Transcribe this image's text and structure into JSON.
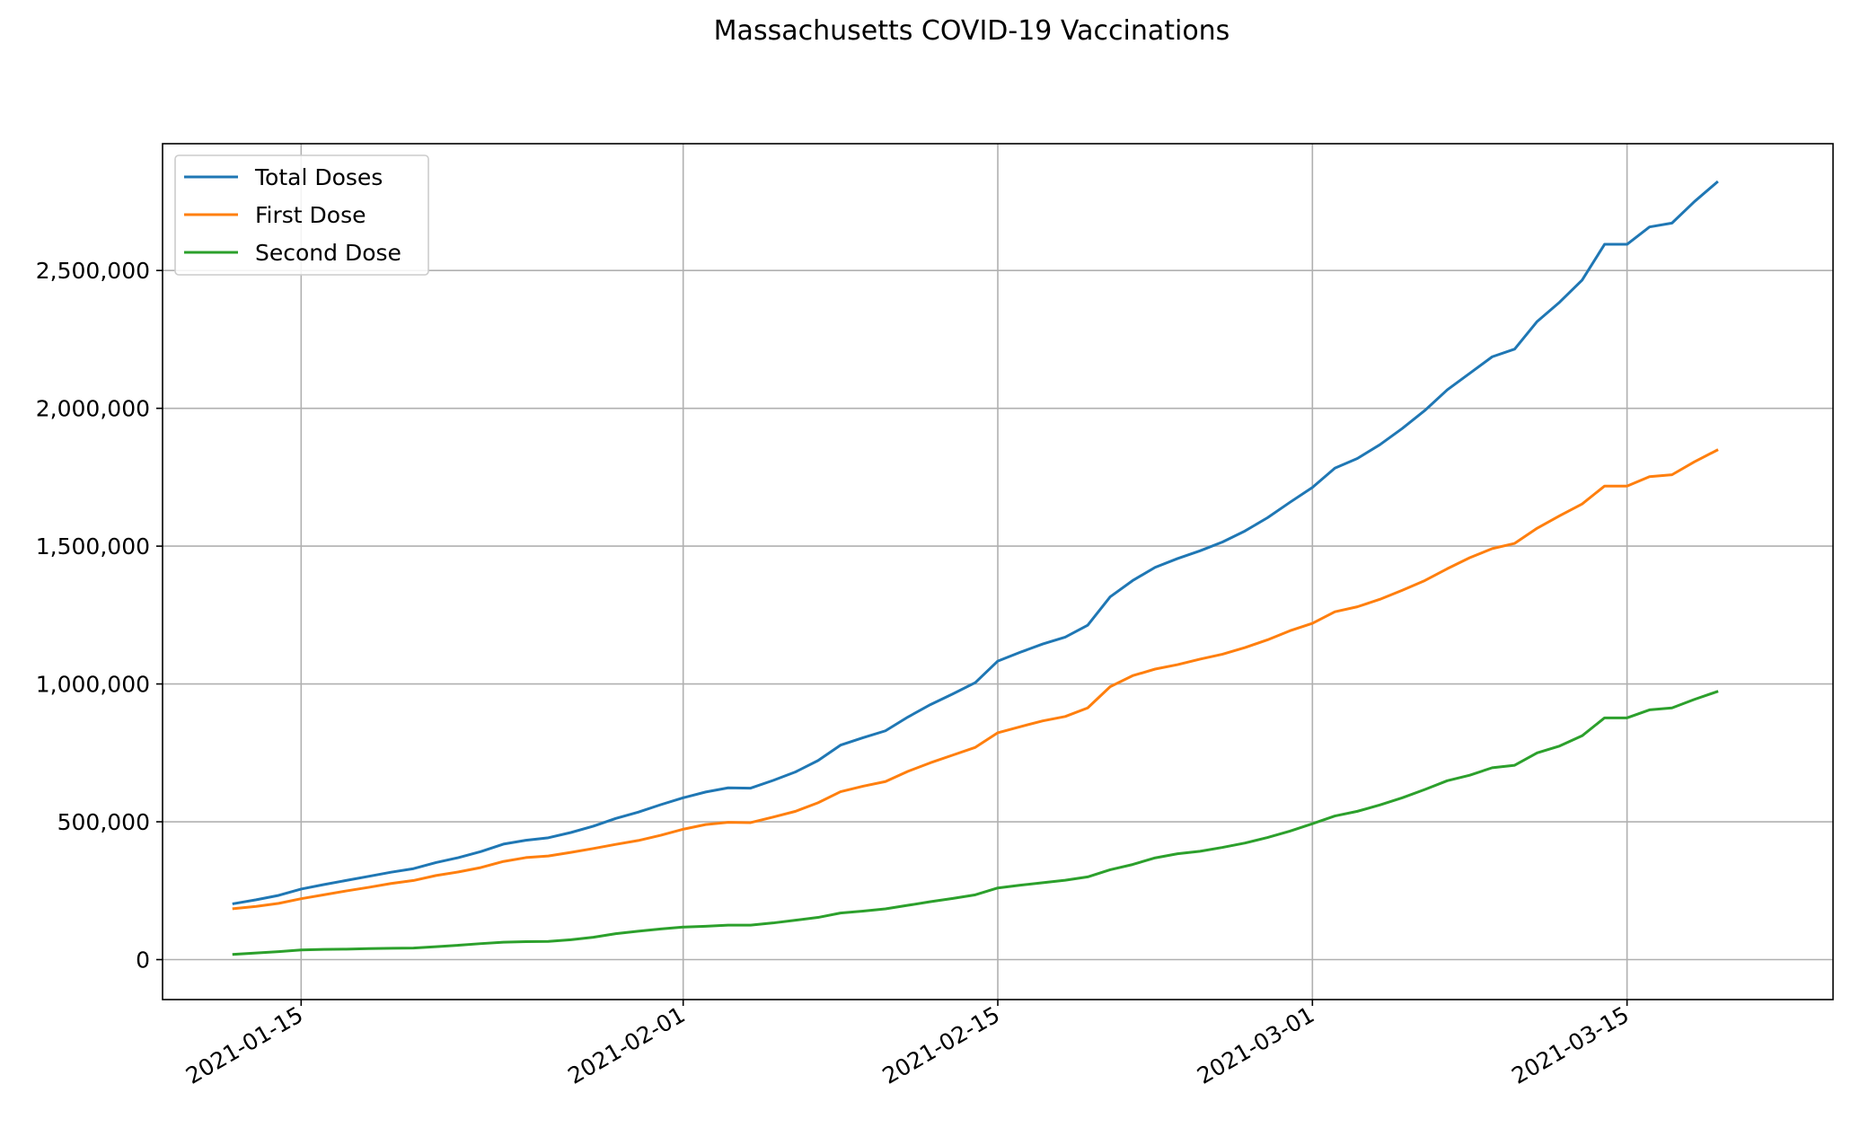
{
  "chart_data": {
    "type": "line",
    "title": "Massachusetts COVID-19 Vaccinations",
    "xlabel": "",
    "ylabel": "",
    "x_start": "2021-01-12",
    "x_end": "2021-03-18",
    "xlim": [
      "2021-01-08 20:00",
      "2021-03-24 04:00"
    ],
    "ylim": [
      -145000,
      2960000
    ],
    "grid": true,
    "legend_position": "top-left",
    "x_ticks": [
      {
        "date": "2021-01-15",
        "label": "2021-01-15"
      },
      {
        "date": "2021-02-01",
        "label": "2021-02-01"
      },
      {
        "date": "2021-02-15",
        "label": "2021-02-15"
      },
      {
        "date": "2021-03-01",
        "label": "2021-03-01"
      },
      {
        "date": "2021-03-15",
        "label": "2021-03-15"
      }
    ],
    "y_ticks": [
      {
        "value": 0,
        "label": "0"
      },
      {
        "value": 500000,
        "label": "500,000"
      },
      {
        "value": 1000000,
        "label": "1,000,000"
      },
      {
        "value": 1500000,
        "label": "1,500,000"
      },
      {
        "value": 2000000,
        "label": "2,000,000"
      },
      {
        "value": 2500000,
        "label": "2,500,000"
      }
    ],
    "series": [
      {
        "name": "Total Doses",
        "color": "#1f77b4",
        "values": [
          203000,
          217000,
          233000,
          256000,
          272000,
          287000,
          302000,
          317000,
          330000,
          352000,
          370000,
          392000,
          419000,
          433000,
          442000,
          461000,
          484000,
          512000,
          535000,
          562000,
          587000,
          608000,
          623000,
          622000,
          650000,
          681000,
          722000,
          778000,
          805000,
          830000,
          880000,
          925000,
          964000,
          1005000,
          1083000,
          1115000,
          1145000,
          1170000,
          1213000,
          1316000,
          1375000,
          1423000,
          1455000,
          1483000,
          1515000,
          1555000,
          1603000,
          1659000,
          1713000,
          1783000,
          1818000,
          1868000,
          1927000,
          1992000,
          2067000,
          2127000,
          2187000,
          2215000,
          2315000,
          2385000,
          2465000,
          2595000,
          2595000,
          2658000,
          2672000,
          2750000,
          2820000
        ]
      },
      {
        "name": "First Dose",
        "color": "#ff7f0e",
        "values": [
          185000,
          193000,
          204000,
          221000,
          235000,
          249000,
          262000,
          276000,
          287000,
          305000,
          318000,
          334000,
          356000,
          370000,
          376000,
          389000,
          403000,
          418000,
          432000,
          451000,
          473000,
          490000,
          498000,
          497000,
          517000,
          538000,
          569000,
          609000,
          629000,
          646000,
          683000,
          714000,
          742000,
          770000,
          823000,
          845000,
          866000,
          882000,
          913000,
          990000,
          1030000,
          1054000,
          1070000,
          1090000,
          1108000,
          1132000,
          1160000,
          1193000,
          1220000,
          1262000,
          1280000,
          1307000,
          1340000,
          1375000,
          1418000,
          1458000,
          1491000,
          1510000,
          1565000,
          1610000,
          1653000,
          1718000,
          1718000,
          1752000,
          1759000,
          1806000,
          1848000
        ]
      },
      {
        "name": "Second Dose",
        "color": "#2ca02c",
        "values": [
          19000,
          24000,
          29000,
          35000,
          37000,
          38000,
          40000,
          41000,
          42000,
          47000,
          52000,
          58000,
          63000,
          65000,
          66000,
          72000,
          81000,
          94000,
          103000,
          111000,
          118000,
          121000,
          125000,
          125000,
          133000,
          143000,
          153000,
          169000,
          176000,
          184000,
          197000,
          210000,
          222000,
          235000,
          260000,
          270000,
          279000,
          288000,
          300000,
          326000,
          345000,
          369000,
          384000,
          393000,
          407000,
          423000,
          443000,
          466000,
          493000,
          521000,
          538000,
          561000,
          587000,
          617000,
          649000,
          669000,
          696000,
          705000,
          750000,
          775000,
          812000,
          877000,
          877000,
          906000,
          913000,
          944000,
          972000
        ]
      }
    ]
  }
}
